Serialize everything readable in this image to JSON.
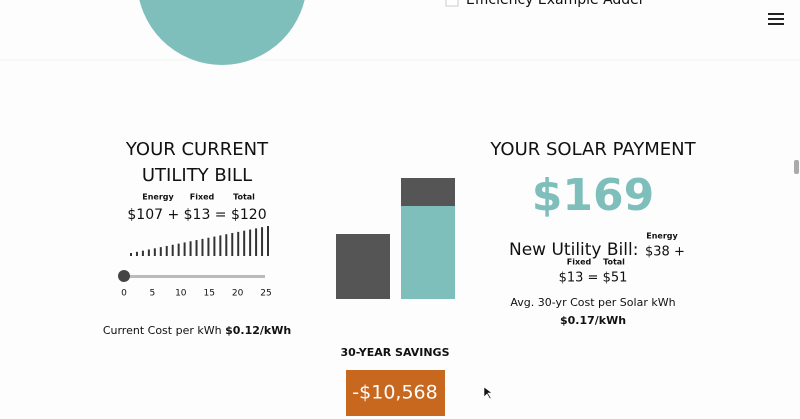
{
  "header": {
    "checkbox_label": "Efficiency Example Adder"
  },
  "utility_bill": {
    "title_line1": "YOUR CURRENT",
    "title_line2": "UTILITY BILL",
    "labels": [
      "Energy",
      "Fixed",
      "Total"
    ],
    "formula": "$107 + $13 = $120",
    "slider_ticks": [
      0,
      5,
      10,
      15,
      20,
      25
    ],
    "cost_label": "Current Cost per kWh",
    "cost_value": "$0.12/kWh"
  },
  "savings": {
    "label": "30-YEAR SAVINGS",
    "value": "-$10,568"
  },
  "solar_payment": {
    "title": "YOUR SOLAR PAYMENT",
    "amount": "$169",
    "new_bill_label": "New Utility Bill:",
    "energy_label": "Energy",
    "energy_value": "$38 +",
    "fixed_label": "Fixed",
    "total_label": "Total",
    "total_formula": "$13 = $51",
    "avg_cost_label": "Avg. 30-yr Cost per Solar kWh",
    "avg_cost_value": "$0.17/kWh"
  }
}
